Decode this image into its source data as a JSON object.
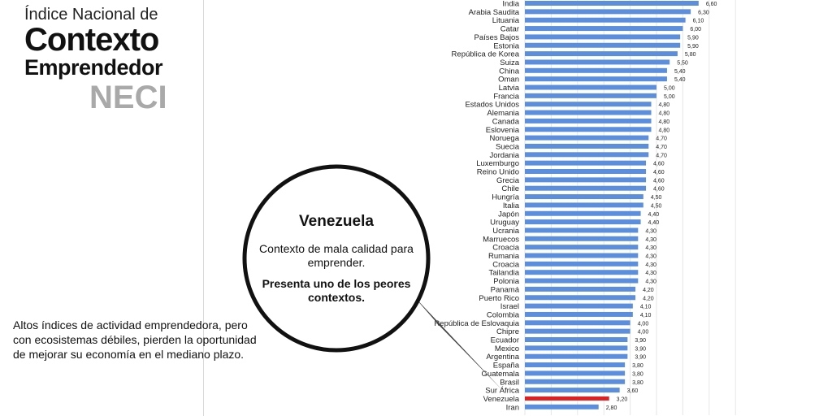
{
  "title": {
    "line1": "Índice Nacional de",
    "line2": "Contexto",
    "line3": "Emprendedor",
    "line4": "NECI"
  },
  "note": "Altos índices de actividad emprendedora, pero con ecosistemas débiles, pierden la oportunidad de mejorar su economía en el mediano plazo.",
  "callout": {
    "title": "Venezuela",
    "body": "Contexto de mala calidad para emprender.",
    "bold": "Presenta uno de los peores contextos."
  },
  "colors": {
    "bar": "#5b8fdd",
    "highlight": "#e02020"
  },
  "chart_data": {
    "type": "bar",
    "orientation": "horizontal",
    "categories": [
      "India",
      "Arabia Saudita",
      "Lituania",
      "Catar",
      "Países Bajos",
      "Estonia",
      "República de Korea",
      "Suiza",
      "China",
      "Oman",
      "Latvia",
      "Francia",
      "Estados Unidos",
      "Alemania",
      "Canada",
      "Eslovenia",
      "Noruega",
      "Suecia",
      "Jordania",
      "Luxemburgo",
      "Reino Unido",
      "Grecia",
      "Chile",
      "Hungría",
      "Italia",
      "Japón",
      "Uruguay",
      "Ucrania",
      "Marruecos",
      "Croacia",
      "Rumania",
      "Croacia",
      "Tailandia",
      "Polonia",
      "Panamá",
      "Puerto Rico",
      "Israel",
      "Colombia",
      "República de Eslovaquia",
      "Chipre",
      "Ecuador",
      "Mexico",
      "Argentina",
      "España",
      "Guatemala",
      "Brasil",
      "Sur África",
      "Venezuela",
      "Iran"
    ],
    "value_labels": [
      "6,60",
      "6,30",
      "6,10",
      "6,00",
      "5,90",
      "5,90",
      "5,80",
      "5,50",
      "5,40",
      "5,40",
      "5,00",
      "5,00",
      "4,80",
      "4,80",
      "4,80",
      "4,80",
      "4,70",
      "4,70",
      "4,70",
      "4,60",
      "4,60",
      "4,60",
      "4,60",
      "4,50",
      "4,50",
      "4,40",
      "4,40",
      "4,30",
      "4,30",
      "4,30",
      "4,30",
      "4,30",
      "4,30",
      "4,30",
      "4,20",
      "4,20",
      "4,10",
      "4,10",
      "4,00",
      "4,00",
      "3,90",
      "3,90",
      "3,90",
      "3,80",
      "3,80",
      "3,80",
      "3,60",
      "3,20",
      "2,80"
    ],
    "values": [
      6.6,
      6.3,
      6.1,
      6.0,
      5.9,
      5.9,
      5.8,
      5.5,
      5.4,
      5.4,
      5.0,
      5.0,
      4.8,
      4.8,
      4.8,
      4.8,
      4.7,
      4.7,
      4.7,
      4.6,
      4.6,
      4.6,
      4.6,
      4.5,
      4.5,
      4.4,
      4.4,
      4.3,
      4.3,
      4.3,
      4.3,
      4.3,
      4.3,
      4.3,
      4.2,
      4.2,
      4.1,
      4.1,
      4.0,
      4.0,
      3.9,
      3.9,
      3.9,
      3.8,
      3.8,
      3.8,
      3.6,
      3.2,
      2.8
    ],
    "highlight": "Venezuela",
    "xlim": [
      0,
      8
    ],
    "grid": true
  }
}
